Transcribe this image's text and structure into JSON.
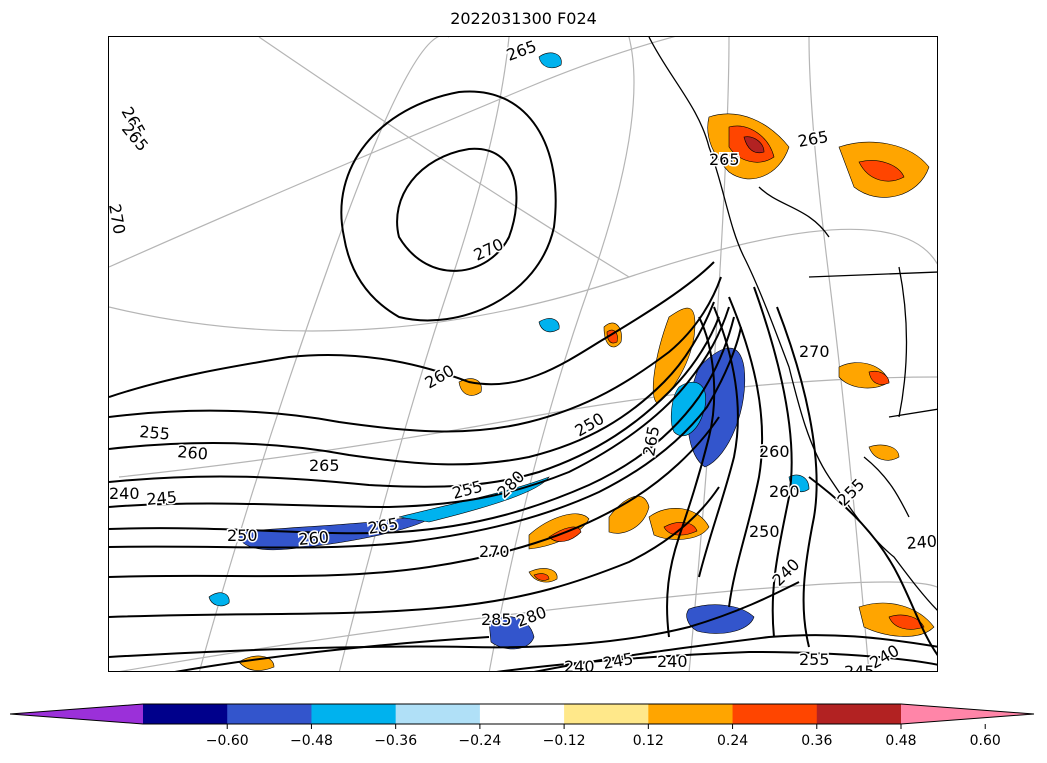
{
  "chart_data": {
    "type": "contour",
    "title": "2022031300 F024",
    "xlabel": "",
    "ylabel": "",
    "grid": true,
    "colorbar": {
      "orientation": "horizontal",
      "location": "bottom",
      "extend": "both",
      "levels": [
        -0.6,
        -0.48,
        -0.36,
        -0.24,
        -0.12,
        0.12,
        0.24,
        0.36,
        0.48,
        0.6
      ],
      "tick_labels": [
        "−0.60",
        "−0.48",
        "−0.36",
        "−0.24",
        "−0.12",
        "0.12",
        "0.24",
        "0.36",
        "0.48",
        "0.60"
      ],
      "colors": [
        "#9b30d9",
        "#00008b",
        "#3355cc",
        "#00b2ee",
        "#b0e0f7",
        "#ffffff",
        "#ffe88a",
        "#ffa500",
        "#ff4500",
        "#b22222",
        "#ff85a8"
      ]
    },
    "contour_labels": [
      "265",
      "265",
      "270",
      "265",
      "265",
      "270",
      "260",
      "255",
      "260",
      "265",
      "240",
      "245",
      "250",
      "260",
      "265",
      "270",
      "255",
      "280",
      "250",
      "265",
      "270",
      "265",
      "260",
      "270",
      "260",
      "255",
      "250",
      "240",
      "285",
      "280",
      "240",
      "245",
      "240",
      "255",
      "245",
      "240",
      "240"
    ],
    "map_colors": {
      "coast": "#000000",
      "border": "#000000",
      "graticule": "#b0b0b0"
    }
  }
}
